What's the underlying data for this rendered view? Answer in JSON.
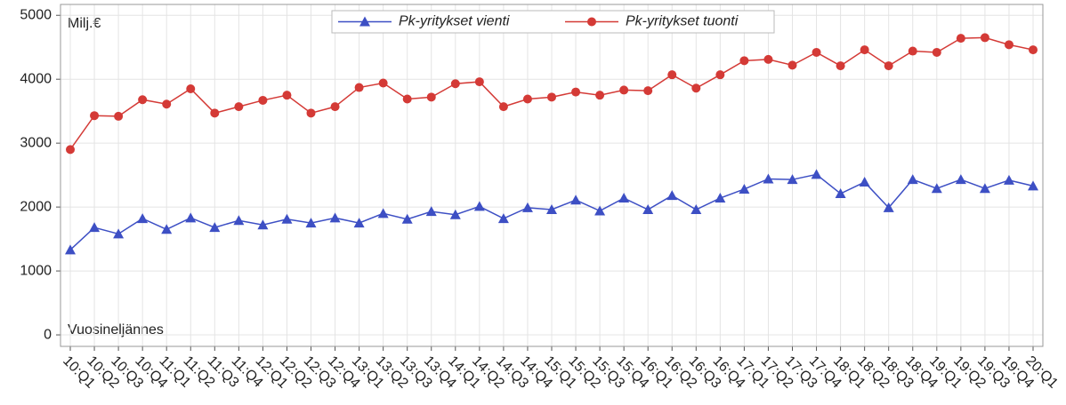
{
  "chart_data": {
    "type": "line",
    "y_label": "Milj.€",
    "x_label": "Vuosineljännes",
    "categories": [
      "10:Q1",
      "10:Q2",
      "10:Q3",
      "10:Q4",
      "11:Q1",
      "11:Q2",
      "11:Q3",
      "11:Q4",
      "12:Q1",
      "12:Q2",
      "12:Q3",
      "12:Q4",
      "13:Q1",
      "13:Q2",
      "13:Q3",
      "13:Q4",
      "14:Q1",
      "14:Q2",
      "14:Q3",
      "14:Q4",
      "15:Q1",
      "15:Q2",
      "15:Q3",
      "15:Q4",
      "16:Q1",
      "16:Q2",
      "16:Q3",
      "16:Q4",
      "17:Q1",
      "17:Q2",
      "17:Q3",
      "17:Q4",
      "18:Q1",
      "18:Q2",
      "18:Q3",
      "18:Q4",
      "19:Q1",
      "19:Q2",
      "19:Q3",
      "19:Q4",
      "20:Q1"
    ],
    "series": [
      {
        "name": "Pk-yritykset vienti",
        "color": "#3d4fc4",
        "marker": "triangle",
        "values": [
          1330,
          1680,
          1580,
          1820,
          1650,
          1830,
          1680,
          1790,
          1720,
          1810,
          1750,
          1830,
          1750,
          1900,
          1810,
          1930,
          1880,
          2010,
          1820,
          1990,
          1960,
          2110,
          1940,
          2140,
          1960,
          2180,
          1960,
          2140,
          2280,
          2440,
          2430,
          2510,
          2210,
          2390,
          1990,
          2430,
          2290,
          2430,
          2290,
          2420,
          2330
        ]
      },
      {
        "name": "Pk-yritykset tuonti",
        "color": "#d43a36",
        "marker": "circle",
        "values": [
          2900,
          3430,
          3420,
          3680,
          3610,
          3850,
          3470,
          3570,
          3670,
          3750,
          3470,
          3570,
          3870,
          3940,
          3690,
          3720,
          3930,
          3960,
          3570,
          3690,
          3720,
          3800,
          3750,
          3830,
          3820,
          4070,
          3860,
          4070,
          4290,
          4310,
          4220,
          4420,
          4210,
          4460,
          4210,
          4440,
          4420,
          4640,
          4650,
          4540,
          4460
        ]
      }
    ],
    "ylim": [
      -180,
      5170
    ],
    "yticks": [
      0,
      1000,
      2000,
      3000,
      4000,
      5000
    ],
    "grid": true,
    "legend": "top"
  }
}
